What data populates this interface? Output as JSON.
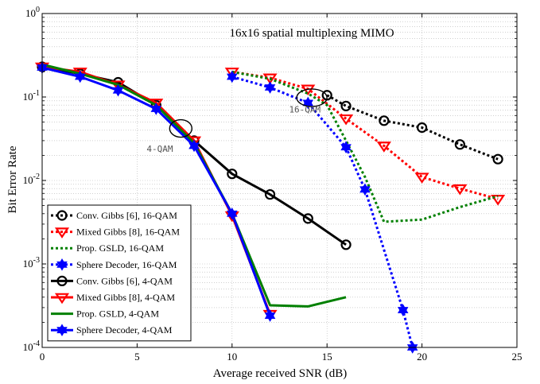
{
  "chart_data": {
    "type": "line",
    "title": "16x16 spatial multiplexing MIMO",
    "xlabel": "Average received SNR (dB)",
    "ylabel": "Bit Error Rate",
    "xlim": [
      0,
      25
    ],
    "ylim": [
      0.0001,
      1
    ],
    "yscale": "log",
    "grid": true,
    "x_ticks": [
      "0",
      "5",
      "10",
      "15",
      "20",
      "25"
    ],
    "y_ticks": [
      {
        "base": "10",
        "exp": "0"
      },
      {
        "base": "10",
        "exp": "-1"
      },
      {
        "base": "10",
        "exp": "-2"
      },
      {
        "base": "10",
        "exp": "-3"
      },
      {
        "base": "10",
        "exp": "-4"
      }
    ],
    "legend_position": "bottom-left",
    "annotations": [
      {
        "text": "16-QAM",
        "x": 13.0,
        "y": 0.065
      },
      {
        "text": "4-QAM",
        "x": 5.5,
        "y": 0.022
      }
    ],
    "series": [
      {
        "name": "Conv. Gibbs [6], 16-QAM",
        "color": "#000000",
        "dash": "dotted",
        "marker": "circle",
        "x": [
          15,
          16,
          18,
          20,
          22,
          24
        ],
        "y": [
          0.105,
          0.078,
          0.052,
          0.043,
          0.027,
          0.018
        ]
      },
      {
        "name": "Mixed Gibbs [8], 16-QAM",
        "color": "#ff0000",
        "dash": "dotted",
        "marker": "triangle",
        "x": [
          10,
          12,
          14,
          16,
          18,
          20,
          22,
          24
        ],
        "y": [
          0.2,
          0.17,
          0.125,
          0.055,
          0.026,
          0.011,
          0.008,
          0.006
        ]
      },
      {
        "name": "Prop. GSLD, 16-QAM",
        "color": "#008000",
        "dash": "dotted",
        "marker": "none",
        "x": [
          10,
          12,
          14,
          15,
          16,
          17,
          18,
          20,
          22,
          24
        ],
        "y": [
          0.2,
          0.165,
          0.11,
          0.08,
          0.03,
          0.011,
          0.0032,
          0.0034,
          0.0048,
          0.0065
        ]
      },
      {
        "name": "Sphere Decoder, 16-QAM",
        "color": "#0000ff",
        "dash": "dotted",
        "marker": "star",
        "x": [
          10,
          12,
          14,
          16,
          17,
          19,
          19.5
        ],
        "y": [
          0.175,
          0.13,
          0.085,
          0.025,
          0.0078,
          0.00028,
          0.0001
        ]
      },
      {
        "name": "Conv. Gibbs [6], 4-QAM",
        "color": "#000000",
        "dash": "solid",
        "marker": "circle",
        "x": [
          0,
          2,
          4,
          6,
          8,
          10,
          12,
          14,
          16
        ],
        "y": [
          0.23,
          0.19,
          0.15,
          0.08,
          0.03,
          0.012,
          0.0068,
          0.0035,
          0.0017
        ]
      },
      {
        "name": "Mixed Gibbs [8], 4-QAM",
        "color": "#ff0000",
        "dash": "solid",
        "marker": "triangle",
        "x": [
          0,
          2,
          4,
          6,
          8,
          10,
          12
        ],
        "y": [
          0.23,
          0.2,
          0.14,
          0.085,
          0.03,
          0.0038,
          0.00025
        ]
      },
      {
        "name": "Prop. GSLD, 4-QAM",
        "color": "#008000",
        "dash": "solid",
        "marker": "none",
        "x": [
          0,
          2,
          4,
          6,
          8,
          10,
          12,
          14,
          16
        ],
        "y": [
          0.245,
          0.19,
          0.14,
          0.08,
          0.028,
          0.004,
          0.00032,
          0.00031,
          0.0004
        ]
      },
      {
        "name": "Sphere Decoder, 4-QAM",
        "color": "#0000ff",
        "dash": "solid",
        "marker": "star",
        "x": [
          0,
          2,
          4,
          6,
          8,
          10,
          12
        ],
        "y": [
          0.225,
          0.175,
          0.12,
          0.072,
          0.026,
          0.004,
          0.00024
        ]
      }
    ]
  }
}
